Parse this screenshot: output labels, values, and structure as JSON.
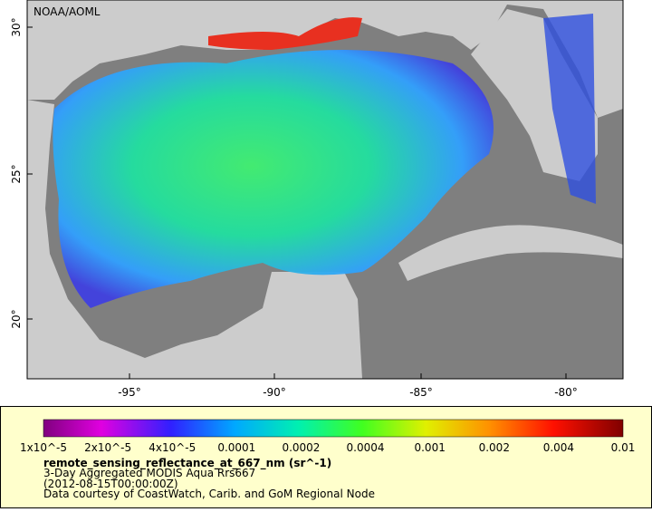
{
  "map": {
    "credit": "NOAA/AOML",
    "lat_labels": [
      "30°",
      "25°",
      "20°"
    ],
    "lon_labels": [
      "-95°",
      "-90°",
      "-85°",
      "-80°"
    ]
  },
  "legend": {
    "colorbar_labels": [
      "1x10^-5",
      "2x10^-5",
      "4x10^-5",
      "0.0001",
      "0.0002",
      "0.0004",
      "0.001",
      "0.002",
      "0.004",
      "0.01"
    ],
    "title": "remote_sensing_reflectance_at_667_nm (sr^-1)",
    "lines": [
      "3-Day Aggregated MODIS Aqua Rrs667",
      "(2012-08-15T00:00:00Z)",
      "Data courtesy of CoastWatch, Carib. and GoM Regional Node"
    ]
  }
}
